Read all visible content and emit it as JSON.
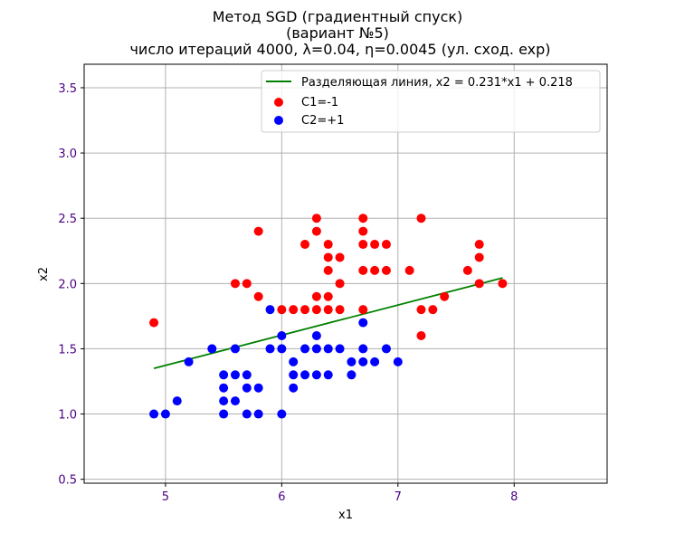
{
  "chart_data": {
    "type": "scatter",
    "title_lines": [
      "Метод SGD (градиентный спуск)",
      "(вариант №5)",
      "число итераций 4000, λ=0.04, η=0.0045 (ул. сход. exp)"
    ],
    "xlabel": "x1",
    "ylabel": "x2",
    "xlim": [
      4.3,
      8.8
    ],
    "ylim": [
      0.47,
      3.68
    ],
    "xticks": [
      5,
      6,
      7,
      8
    ],
    "yticks": [
      0.5,
      1.0,
      1.5,
      2.0,
      2.5,
      3.0,
      3.5
    ],
    "xtick_labels": [
      "5",
      "6",
      "7",
      "8"
    ],
    "ytick_labels": [
      "0.5",
      "1.0",
      "1.5",
      "2.0",
      "2.5",
      "3.0",
      "3.5"
    ],
    "tick_label_color": "#4b0082",
    "grid": true,
    "legend_position": "top-right",
    "line": {
      "label": "Разделяющая линия,  x2 = 0.231*x1 + 0.218",
      "color": "#008000",
      "slope": 0.231,
      "intercept": 0.218,
      "x_range": [
        4.9,
        7.9
      ]
    },
    "series": [
      {
        "name": "C1=-1",
        "color": "#ff0000",
        "points": [
          [
            4.9,
            1.7
          ],
          [
            5.6,
            2.0
          ],
          [
            5.7,
            2.0
          ],
          [
            5.8,
            2.4
          ],
          [
            5.8,
            1.9
          ],
          [
            6.0,
            1.8
          ],
          [
            6.1,
            1.8
          ],
          [
            6.2,
            1.8
          ],
          [
            6.2,
            2.3
          ],
          [
            6.3,
            2.5
          ],
          [
            6.3,
            2.4
          ],
          [
            6.3,
            1.9
          ],
          [
            6.3,
            1.8
          ],
          [
            6.4,
            2.3
          ],
          [
            6.4,
            2.2
          ],
          [
            6.4,
            2.1
          ],
          [
            6.4,
            1.9
          ],
          [
            6.4,
            1.8
          ],
          [
            6.5,
            2.2
          ],
          [
            6.5,
            2.0
          ],
          [
            6.5,
            1.8
          ],
          [
            6.7,
            2.5
          ],
          [
            6.7,
            2.4
          ],
          [
            6.7,
            2.3
          ],
          [
            6.7,
            2.1
          ],
          [
            6.7,
            1.8
          ],
          [
            6.8,
            2.3
          ],
          [
            6.8,
            2.1
          ],
          [
            6.9,
            2.3
          ],
          [
            6.9,
            2.1
          ],
          [
            7.1,
            2.1
          ],
          [
            7.2,
            2.5
          ],
          [
            7.2,
            1.8
          ],
          [
            7.2,
            1.6
          ],
          [
            7.3,
            1.8
          ],
          [
            7.4,
            1.9
          ],
          [
            7.6,
            2.1
          ],
          [
            7.7,
            2.3
          ],
          [
            7.7,
            2.2
          ],
          [
            7.7,
            2.0
          ],
          [
            7.9,
            2.0
          ]
        ]
      },
      {
        "name": "C2=+1",
        "color": "#0000ff",
        "points": [
          [
            4.9,
            1.0
          ],
          [
            5.0,
            1.0
          ],
          [
            5.1,
            1.1
          ],
          [
            5.2,
            1.4
          ],
          [
            5.4,
            1.5
          ],
          [
            5.5,
            1.3
          ],
          [
            5.5,
            1.2
          ],
          [
            5.5,
            1.1
          ],
          [
            5.5,
            1.0
          ],
          [
            5.6,
            1.5
          ],
          [
            5.6,
            1.3
          ],
          [
            5.6,
            1.1
          ],
          [
            5.7,
            1.3
          ],
          [
            5.7,
            1.2
          ],
          [
            5.7,
            1.0
          ],
          [
            5.8,
            1.2
          ],
          [
            5.8,
            1.0
          ],
          [
            5.9,
            1.8
          ],
          [
            5.9,
            1.5
          ],
          [
            6.0,
            1.6
          ],
          [
            6.0,
            1.5
          ],
          [
            6.0,
            1.0
          ],
          [
            6.1,
            1.4
          ],
          [
            6.1,
            1.3
          ],
          [
            6.1,
            1.2
          ],
          [
            6.2,
            1.5
          ],
          [
            6.2,
            1.3
          ],
          [
            6.3,
            1.6
          ],
          [
            6.3,
            1.5
          ],
          [
            6.3,
            1.3
          ],
          [
            6.4,
            1.5
          ],
          [
            6.4,
            1.3
          ],
          [
            6.5,
            1.5
          ],
          [
            6.6,
            1.4
          ],
          [
            6.6,
            1.3
          ],
          [
            6.7,
            1.7
          ],
          [
            6.7,
            1.5
          ],
          [
            6.7,
            1.4
          ],
          [
            6.8,
            1.4
          ],
          [
            6.9,
            1.5
          ],
          [
            7.0,
            1.4
          ]
        ]
      }
    ]
  }
}
